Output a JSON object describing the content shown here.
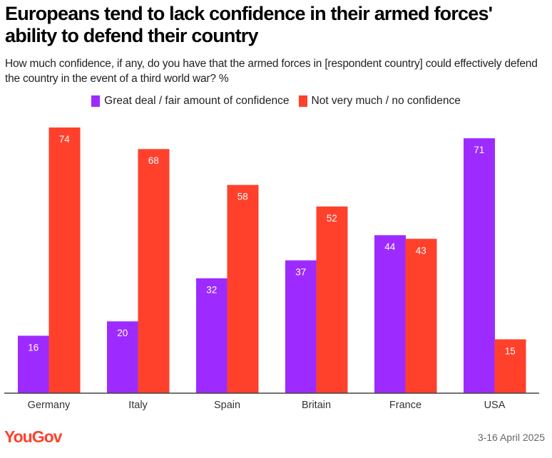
{
  "header": {
    "title": "Europeans tend to lack confidence in their armed forces' ability to defend their country",
    "subtitle": "How much confidence, if any, do you have that the armed forces in [respondent country] could effectively defend the country in the event of a third world war? %"
  },
  "footer": {
    "logo": "YouGov",
    "date": "3-16 April 2025"
  },
  "colors": {
    "confident": "#9d2bff",
    "not_confident": "#ff412c",
    "axis": "#444444"
  },
  "chart_data": {
    "type": "bar",
    "title": "Europeans tend to lack confidence in their armed forces' ability to defend their country",
    "subtitle": "How much confidence, if any, do you have that the armed forces in [respondent country] could effectively defend the country in the event of a third world war? %",
    "xlabel": "",
    "ylabel": "",
    "ylim": [
      0,
      74
    ],
    "grid": false,
    "legend_position": "top-center",
    "categories": [
      "Germany",
      "Italy",
      "Spain",
      "Britain",
      "France",
      "USA"
    ],
    "series": [
      {
        "name": "Great deal / fair amount of confidence",
        "color": "#9d2bff",
        "values": [
          16,
          20,
          32,
          37,
          44,
          71
        ]
      },
      {
        "name": "Not very much / no confidence",
        "color": "#ff412c",
        "values": [
          74,
          68,
          58,
          52,
          43,
          15
        ]
      }
    ]
  }
}
